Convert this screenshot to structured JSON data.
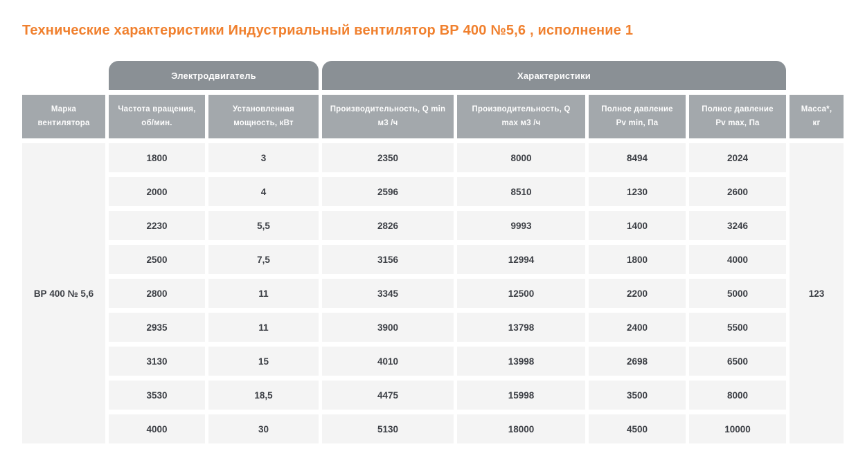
{
  "page": {
    "title": "Технические характеристики Индустриальный вентилятор ВР 400 №5,6 , исполнение 1"
  },
  "colors": {
    "title_accent": "#f0802e",
    "group_header_bg": "#8a9095",
    "column_header_bg": "#a3a8ac",
    "cell_bg": "#f4f4f4",
    "cell_text": "#3c3f45",
    "header_text": "#fdfdfd"
  },
  "table": {
    "group_headers": [
      {
        "label": "Электродвигатель"
      },
      {
        "label": "Характеристики"
      }
    ],
    "columns": [
      {
        "lines": [
          "Марка",
          "вентилятора"
        ]
      },
      {
        "lines": [
          "Частота вращения,",
          "об/мин."
        ]
      },
      {
        "lines": [
          "Установленная",
          "мощность, кВт"
        ]
      },
      {
        "lines": [
          "Производительность, Q min",
          "м3 /ч"
        ]
      },
      {
        "lines": [
          "Производительность, Q",
          "max м3 /ч"
        ]
      },
      {
        "lines": [
          "Полное давление",
          "Pv min, Па"
        ]
      },
      {
        "lines": [
          "Полное давление",
          "Pv max, Па"
        ]
      },
      {
        "lines": [
          "Масса*,",
          "кг"
        ]
      }
    ],
    "fan_model": "ВР 400 № 5,6",
    "mass_value": "123",
    "rows": [
      [
        "1800",
        "3",
        "2350",
        "8000",
        "8494",
        "2024"
      ],
      [
        "2000",
        "4",
        "2596",
        "8510",
        "1230",
        "2600"
      ],
      [
        "2230",
        "5,5",
        "2826",
        "9993",
        "1400",
        "3246"
      ],
      [
        "2500",
        "7,5",
        "3156",
        "12994",
        "1800",
        "4000"
      ],
      [
        "2800",
        "11",
        "3345",
        "12500",
        "2200",
        "5000"
      ],
      [
        "2935",
        "11",
        "3900",
        "13798",
        "2400",
        "5500"
      ],
      [
        "3130",
        "15",
        "4010",
        "13998",
        "2698",
        "6500"
      ],
      [
        "3530",
        "18,5",
        "4475",
        "15998",
        "3500",
        "8000"
      ],
      [
        "4000",
        "30",
        "5130",
        "18000",
        "4500",
        "10000"
      ]
    ]
  }
}
